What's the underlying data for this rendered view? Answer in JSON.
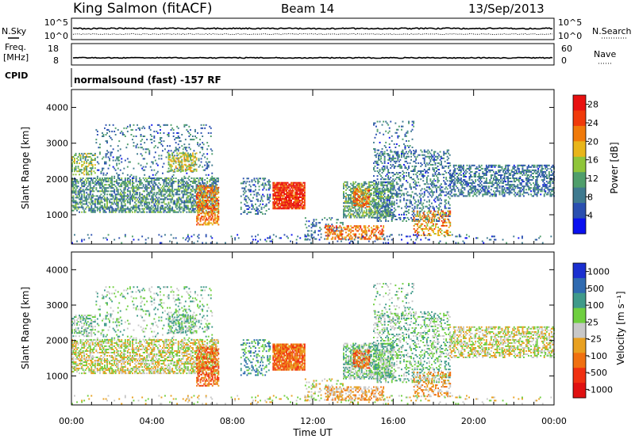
{
  "header": {
    "station": "King Salmon (fitACF)",
    "beam": "Beam 14",
    "date": "13/Sep/2013"
  },
  "top_panels": {
    "nsky_label": "N.Sky",
    "nsearch_label": "N.Search",
    "nsky_ticks": [
      "10^5",
      "10^0"
    ],
    "nsearch_ticks": [
      "10^5",
      "10^0"
    ],
    "freq_label_1": "Freq.",
    "freq_label_2": "[MHz]",
    "freq_ticks": [
      "18",
      "8"
    ],
    "nave_label": "Nave",
    "nave_ticks": [
      "60",
      "0"
    ],
    "cpid_label": "CPID",
    "cpid_text": "normalsound (fast) -157 RF"
  },
  "colors": {
    "power": [
      "#0a10f0",
      "#2a4fb0",
      "#3f7a8f",
      "#4f9e6b",
      "#8fc53a",
      "#e8b51a",
      "#f07a0a",
      "#f03a0a",
      "#e81010"
    ],
    "velocity": [
      "#1a2fd0",
      "#2f6ab0",
      "#3f9a8a",
      "#6fcf3f",
      "#c8c8c8",
      "#e8a020",
      "#f07010",
      "#f03010",
      "#e01010"
    ]
  },
  "chart_data": [
    {
      "type": "heatmap",
      "name": "power",
      "ylabel": "Slant Range [km]",
      "xlabel": "Time UT",
      "x_ticks": [
        "00:00",
        "04:00",
        "08:00",
        "12:00",
        "16:00",
        "20:00",
        "00:00"
      ],
      "x_range_hours": [
        0,
        24
      ],
      "y_range_km": [
        180,
        4500
      ],
      "y_ticks": [
        1000,
        2000,
        3000,
        4000
      ],
      "colorbar_label": "Power [dB]",
      "colorbar_ticks": [
        4,
        8,
        12,
        16,
        20,
        24,
        28
      ],
      "colorbar_range": [
        0,
        30
      ]
    },
    {
      "type": "heatmap",
      "name": "velocity",
      "ylabel": "Slant Range [km]",
      "xlabel": "Time UT",
      "x_ticks": [
        "00:00",
        "04:00",
        "08:00",
        "12:00",
        "16:00",
        "20:00",
        "00:00"
      ],
      "x_range_hours": [
        0,
        24
      ],
      "y_range_km": [
        180,
        4500
      ],
      "y_ticks": [
        1000,
        2000,
        3000,
        4000
      ],
      "colorbar_label": "Velocity [m s⁻¹]",
      "colorbar_ticks": [
        "1000",
        "500",
        "100",
        "25",
        "-25",
        "-100",
        "-500",
        "-1000"
      ]
    }
  ],
  "scatter_regions": [
    {
      "t0": 0.0,
      "t1": 7.3,
      "r0": 1050,
      "r1": 2000,
      "p": 0.55,
      "pc": 10,
      "vc": 4
    },
    {
      "t0": 0.0,
      "t1": 1.2,
      "r0": 2100,
      "r1": 2700,
      "p": 0.45,
      "pc": 14,
      "vc": 3
    },
    {
      "t0": 1.2,
      "t1": 7.0,
      "r0": 2000,
      "r1": 3500,
      "p": 0.14,
      "pc": 8,
      "vc": 3
    },
    {
      "t0": 4.8,
      "t1": 6.2,
      "r0": 2200,
      "r1": 2700,
      "p": 0.5,
      "pc": 16,
      "vc": 3
    },
    {
      "t0": 6.2,
      "t1": 7.3,
      "r0": 700,
      "r1": 1800,
      "p": 0.5,
      "pc": 22,
      "vc": 6
    },
    {
      "t0": 8.4,
      "t1": 9.9,
      "r0": 1000,
      "r1": 2000,
      "p": 0.3,
      "pc": 8,
      "vc": 2
    },
    {
      "t0": 10.0,
      "t1": 11.6,
      "r0": 1150,
      "r1": 1900,
      "p": 0.88,
      "pc": 26,
      "vc": 6
    },
    {
      "t0": 11.6,
      "t1": 13.5,
      "r0": 300,
      "r1": 900,
      "p": 0.2,
      "pc": 8,
      "vc": 4
    },
    {
      "t0": 12.6,
      "t1": 15.5,
      "r0": 300,
      "r1": 700,
      "p": 0.45,
      "pc": 22,
      "vc": 5
    },
    {
      "t0": 13.5,
      "t1": 16.0,
      "r0": 900,
      "r1": 1900,
      "p": 0.55,
      "pc": 12,
      "vc": 3
    },
    {
      "t0": 14.0,
      "t1": 14.8,
      "r0": 1200,
      "r1": 1700,
      "p": 0.6,
      "pc": 22,
      "vc": 6
    },
    {
      "t0": 15.0,
      "t1": 18.8,
      "r0": 800,
      "r1": 2800,
      "p": 0.3,
      "pc": 8,
      "vc": 3
    },
    {
      "t0": 15.0,
      "t1": 17.0,
      "r0": 2500,
      "r1": 3600,
      "p": 0.12,
      "pc": 8,
      "vc": 3
    },
    {
      "t0": 17.0,
      "t1": 18.8,
      "r0": 400,
      "r1": 1100,
      "p": 0.35,
      "pc": 20,
      "vc": 5
    },
    {
      "t0": 18.8,
      "t1": 24.0,
      "r0": 1500,
      "r1": 2400,
      "p": 0.45,
      "pc": 8,
      "vc": 4
    },
    {
      "t0": 0.0,
      "t1": 24.0,
      "r0": 190,
      "r1": 420,
      "p": 0.08,
      "pc": 6,
      "vc": 4
    }
  ]
}
